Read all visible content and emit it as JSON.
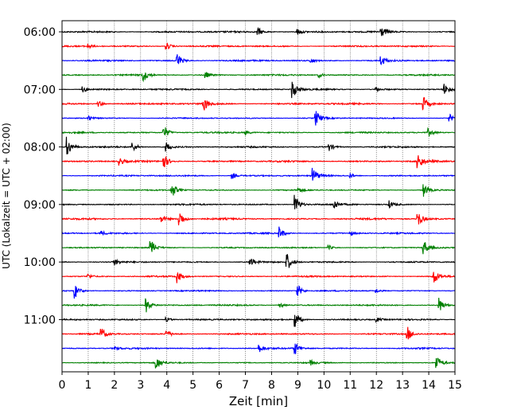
{
  "chart_data": {
    "type": "line",
    "subtype": "helicorder",
    "xlabel": "Zeit  [min]",
    "ylabel": "UTC (Lokalzeit = UTC + 02:00)",
    "xlim": [
      0,
      15
    ],
    "x_ticks": [
      "0",
      "1",
      "2",
      "3",
      "4",
      "5",
      "6",
      "7",
      "8",
      "9",
      "10",
      "11",
      "12",
      "13",
      "14",
      "15"
    ],
    "y_tick_labels": [
      "06:00",
      "07:00",
      "08:00",
      "09:00",
      "10:00",
      "11:00"
    ],
    "grid": "vertical dotted at each minute",
    "trace_colors": [
      "#000000",
      "#ff0000",
      "#0000ff",
      "#008000"
    ],
    "trace_start_times": [
      "06:00",
      "06:15",
      "06:30",
      "06:45",
      "07:00",
      "07:15",
      "07:30",
      "07:45",
      "08:00",
      "08:15",
      "08:30",
      "08:45",
      "09:00",
      "09:15",
      "09:30",
      "09:45",
      "10:00",
      "10:15",
      "10:30",
      "10:45",
      "11:00",
      "11:15",
      "11:30",
      "11:45"
    ],
    "events": [
      [
        [
          7.5,
          0.5
        ],
        [
          9.0,
          0.4
        ],
        [
          12.2,
          0.6
        ]
      ],
      [
        [
          4.0,
          0.5
        ],
        [
          1.0,
          0.3
        ]
      ],
      [
        [
          4.4,
          1.0
        ],
        [
          12.2,
          0.6
        ],
        [
          9.5,
          0.3
        ]
      ],
      [
        [
          3.1,
          0.9
        ],
        [
          5.5,
          0.4
        ],
        [
          9.8,
          0.3
        ]
      ],
      [
        [
          8.8,
          1.2
        ],
        [
          0.8,
          0.4
        ],
        [
          14.6,
          0.7
        ],
        [
          12.0,
          0.3
        ]
      ],
      [
        [
          5.4,
          1.1
        ],
        [
          13.8,
          0.9
        ],
        [
          1.4,
          0.4
        ]
      ],
      [
        [
          9.7,
          1.0
        ],
        [
          14.8,
          0.5
        ],
        [
          1.0,
          0.3
        ]
      ],
      [
        [
          3.9,
          0.9
        ],
        [
          14.0,
          0.5
        ],
        [
          7.0,
          0.3
        ]
      ],
      [
        [
          0.2,
          1.3
        ],
        [
          2.7,
          0.6
        ],
        [
          4.0,
          0.6
        ],
        [
          10.2,
          0.5
        ]
      ],
      [
        [
          3.9,
          0.9
        ],
        [
          13.6,
          1.1
        ],
        [
          2.2,
          0.5
        ]
      ],
      [
        [
          9.6,
          1.0
        ],
        [
          6.5,
          0.4
        ],
        [
          11.0,
          0.3
        ]
      ],
      [
        [
          4.2,
          1.0
        ],
        [
          13.8,
          0.9
        ],
        [
          9.0,
          0.4
        ]
      ],
      [
        [
          8.9,
          1.3
        ],
        [
          10.4,
          0.6
        ],
        [
          12.5,
          0.5
        ]
      ],
      [
        [
          4.5,
          1.0
        ],
        [
          13.6,
          1.0
        ],
        [
          3.8,
          0.5
        ]
      ],
      [
        [
          8.3,
          0.8
        ],
        [
          1.5,
          0.3
        ],
        [
          11.0,
          0.3
        ]
      ],
      [
        [
          3.4,
          1.0
        ],
        [
          13.8,
          1.1
        ],
        [
          10.2,
          0.3
        ]
      ],
      [
        [
          8.6,
          1.1
        ],
        [
          7.2,
          0.6
        ],
        [
          2.0,
          0.4
        ]
      ],
      [
        [
          4.4,
          0.8
        ],
        [
          14.2,
          1.0
        ],
        [
          1.0,
          0.3
        ]
      ],
      [
        [
          0.5,
          1.0
        ],
        [
          9.0,
          0.8
        ],
        [
          12.0,
          0.3
        ]
      ],
      [
        [
          3.2,
          1.0
        ],
        [
          14.4,
          1.0
        ],
        [
          8.3,
          0.4
        ]
      ],
      [
        [
          8.9,
          1.1
        ],
        [
          4.0,
          0.3
        ],
        [
          12.0,
          0.3
        ]
      ],
      [
        [
          1.5,
          0.8
        ],
        [
          4.0,
          0.5
        ],
        [
          13.2,
          0.9
        ]
      ],
      [
        [
          8.9,
          0.8
        ],
        [
          7.5,
          0.6
        ],
        [
          2.0,
          0.3
        ]
      ],
      [
        [
          3.6,
          0.9
        ],
        [
          14.3,
          1.0
        ],
        [
          9.5,
          0.3
        ]
      ]
    ],
    "noise_levels": [
      0.35,
      0.3,
      0.3,
      0.3,
      0.3,
      0.35,
      0.25,
      0.3,
      0.3,
      0.35,
      0.3,
      0.25,
      0.3,
      0.35,
      0.3,
      0.25,
      0.3,
      0.3,
      0.25,
      0.3,
      0.3,
      0.3,
      0.3,
      0.25
    ]
  }
}
